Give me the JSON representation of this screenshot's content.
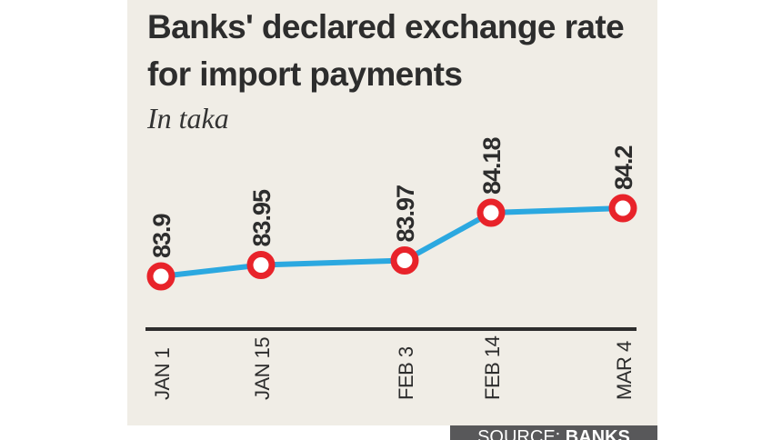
{
  "chart_data": {
    "type": "line",
    "title": "Banks' declared exchange rate for import payments",
    "subtitle": "In taka",
    "categories": [
      "JAN 1",
      "JAN 15",
      "FEB 3",
      "FEB 14",
      "MAR 4"
    ],
    "values": [
      83.9,
      83.95,
      83.97,
      84.18,
      84.2
    ],
    "labels": [
      "83.9",
      "83.95",
      "83.97",
      "84.18",
      "84.2"
    ],
    "line_color": "#2ba8e0",
    "marker_color": "#e8232a",
    "grid": false
  },
  "source": {
    "label": "SOURCE:",
    "value": "BANKS"
  }
}
